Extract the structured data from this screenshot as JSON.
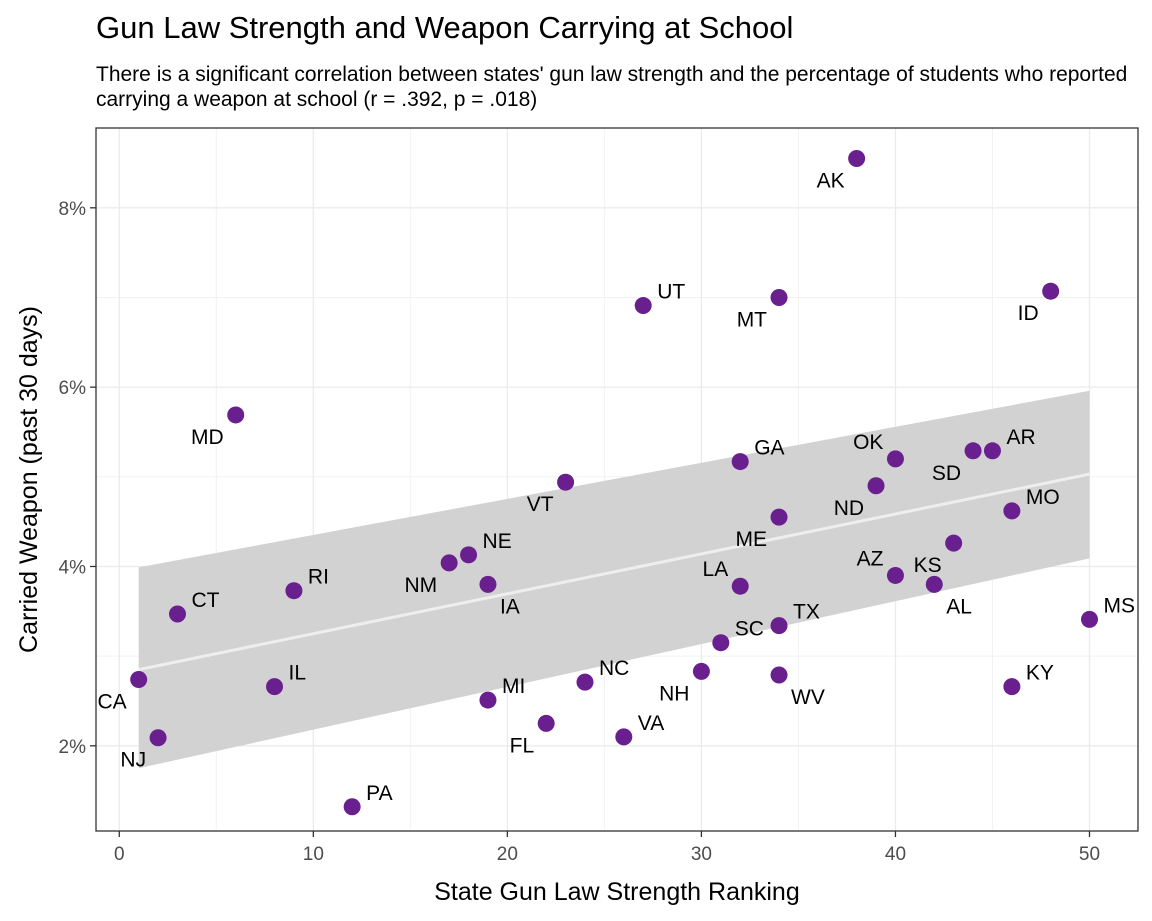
{
  "chart_data": {
    "type": "scatter",
    "title": "Gun Law Strength and Weapon Carrying at School",
    "subtitle": "There is a significant correlation between states' gun law strength and the percentage of students who reported carrying a weapon at school (r = .392, p = .018)",
    "xlabel": "State Gun Law Strength Ranking",
    "ylabel": "Carried Weapon (past 30 days)",
    "xlim": [
      -1.2,
      52.5
    ],
    "ylim": [
      0.0105,
      0.0889
    ],
    "x_ticks": [
      0,
      10,
      20,
      30,
      40,
      50
    ],
    "y_ticks": [
      0.02,
      0.04,
      0.06,
      0.08
    ],
    "x_tick_labels": [
      "0",
      "10",
      "20",
      "30",
      "40",
      "50"
    ],
    "y_tick_labels": [
      "2%",
      "4%",
      "6%",
      "8%"
    ],
    "grid": true,
    "point_color": "#6a1f8f",
    "trend_line": {
      "type": "linear",
      "x": [
        1,
        50
      ],
      "y": [
        0.0285,
        0.0503
      ],
      "band_lower": [
        0.0175,
        0.0409
      ],
      "band_upper": [
        0.0399,
        0.0596
      ],
      "line_color": "#eeeeee",
      "band_color": "#d2d2d2"
    },
    "points": [
      {
        "label": "AK",
        "x": 38,
        "y": 0.0855,
        "label_pos": "bl"
      },
      {
        "label": "UT",
        "x": 27,
        "y": 0.0691,
        "label_pos": "tr"
      },
      {
        "label": "MT",
        "x": 34,
        "y": 0.07,
        "label_pos": "bl"
      },
      {
        "label": "ID",
        "x": 48,
        "y": 0.0707,
        "label_pos": "bl"
      },
      {
        "label": "MD",
        "x": 6,
        "y": 0.0569,
        "label_pos": "bl"
      },
      {
        "label": "GA",
        "x": 32,
        "y": 0.0517,
        "label_pos": "tr"
      },
      {
        "label": "OK",
        "x": 40,
        "y": 0.052,
        "label_pos": "tl"
      },
      {
        "label": "SD",
        "x": 44,
        "y": 0.0529,
        "label_pos": "bl"
      },
      {
        "label": "AR",
        "x": 45,
        "y": 0.0529,
        "label_pos": "tr"
      },
      {
        "label": "VT",
        "x": 23,
        "y": 0.0494,
        "label_pos": "bl"
      },
      {
        "label": "ND",
        "x": 39,
        "y": 0.049,
        "label_pos": "bl"
      },
      {
        "label": "MO",
        "x": 46,
        "y": 0.0462,
        "label_pos": "tr"
      },
      {
        "label": "ME",
        "x": 34,
        "y": 0.0455,
        "label_pos": "bl"
      },
      {
        "label": "NE",
        "x": 18,
        "y": 0.0413,
        "label_pos": "tr"
      },
      {
        "label": "NM",
        "x": 17,
        "y": 0.0404,
        "label_pos": "bl"
      },
      {
        "label": "AZ",
        "x": 40,
        "y": 0.039,
        "label_pos": "tl"
      },
      {
        "label": "KS",
        "x": 43,
        "y": 0.0426,
        "label_pos": "bl"
      },
      {
        "label": "RI",
        "x": 9,
        "y": 0.0373,
        "label_pos": "tr"
      },
      {
        "label": "IA",
        "x": 19,
        "y": 0.038,
        "label_pos": "br"
      },
      {
        "label": "LA",
        "x": 32,
        "y": 0.0378,
        "label_pos": "tl"
      },
      {
        "label": "AL",
        "x": 42,
        "y": 0.038,
        "label_pos": "br"
      },
      {
        "label": "CT",
        "x": 3,
        "y": 0.0347,
        "label_pos": "tr"
      },
      {
        "label": "MS",
        "x": 50,
        "y": 0.0341,
        "label_pos": "tr"
      },
      {
        "label": "TX",
        "x": 34,
        "y": 0.0334,
        "label_pos": "tr"
      },
      {
        "label": "SC",
        "x": 31,
        "y": 0.0315,
        "label_pos": "tr"
      },
      {
        "label": "NH",
        "x": 30,
        "y": 0.0283,
        "label_pos": "bl"
      },
      {
        "label": "NC",
        "x": 24,
        "y": 0.0271,
        "label_pos": "tr"
      },
      {
        "label": "WV",
        "x": 34,
        "y": 0.0279,
        "label_pos": "br"
      },
      {
        "label": "CA",
        "x": 1,
        "y": 0.0274,
        "label_pos": "bl"
      },
      {
        "label": "IL",
        "x": 8,
        "y": 0.0266,
        "label_pos": "tr"
      },
      {
        "label": "KY",
        "x": 46,
        "y": 0.0266,
        "label_pos": "tr"
      },
      {
        "label": "MI",
        "x": 19,
        "y": 0.0251,
        "label_pos": "tr"
      },
      {
        "label": "FL",
        "x": 22,
        "y": 0.0225,
        "label_pos": "bl"
      },
      {
        "label": "VA",
        "x": 26,
        "y": 0.021,
        "label_pos": "tr"
      },
      {
        "label": "NJ",
        "x": 2,
        "y": 0.0209,
        "label_pos": "bl"
      },
      {
        "label": "PA",
        "x": 12,
        "y": 0.0132,
        "label_pos": "tr"
      }
    ]
  }
}
